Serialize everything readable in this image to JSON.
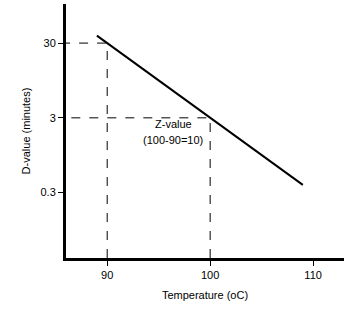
{
  "chart_data": {
    "type": "line",
    "x_label": "Temperature (oC)",
    "y_label": "D-value (minutes)",
    "x": [
      89,
      109
    ],
    "values": [
      37.8,
      0.38
    ],
    "color": "#000000",
    "log": "y",
    "grid": false,
    "xlim": [
      86,
      113
    ],
    "ylim": [
      0.04,
      100
    ],
    "xticks": [
      90,
      100,
      110
    ],
    "yticks": [
      0.3,
      3,
      30
    ],
    "reference_lines": {
      "line_style": "dashed",
      "points": [
        {
          "x": 90,
          "y": 30
        },
        {
          "x": 100,
          "y": 3
        }
      ]
    },
    "annotations": [
      {
        "text": "Z-value",
        "x": 96.4,
        "y": 2.45
      },
      {
        "text": "(100-90=10)",
        "x": 96.4,
        "y": 1.5
      }
    ]
  }
}
